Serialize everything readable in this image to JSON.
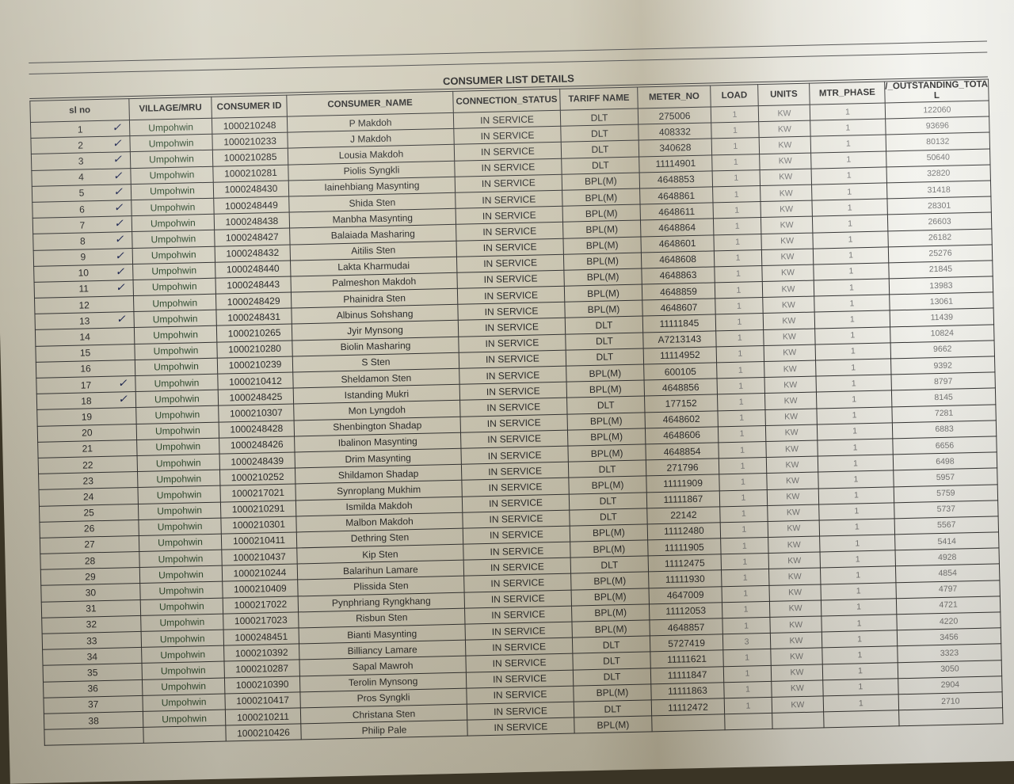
{
  "document": {
    "title": "CONSUMER LIST DETAILS",
    "columns": [
      "sl no",
      "VILLAGE/MRU",
      "CONSUMER ID",
      "CONSUMER_NAME",
      "CONNECTION_STATUS",
      "TARIFF NAME",
      "METER_NO",
      "LOAD",
      "UNITS",
      "MTR_PHASE",
      "/_OUTSTANDING_TOTAL"
    ],
    "rows": [
      [
        "1",
        "Umpohwin",
        "1000210248",
        "P Makdoh",
        "IN SERVICE",
        "DLT",
        "275006",
        "1",
        "KW",
        "1",
        "122060"
      ],
      [
        "2",
        "Umpohwin",
        "1000210233",
        "J Makdoh",
        "IN SERVICE",
        "DLT",
        "408332",
        "1",
        "KW",
        "1",
        "93696"
      ],
      [
        "3",
        "Umpohwin",
        "1000210285",
        "Lousia Makdoh",
        "IN SERVICE",
        "DLT",
        "340628",
        "1",
        "KW",
        "1",
        "80132"
      ],
      [
        "4",
        "Umpohwin",
        "1000210281",
        "Piolis Syngkli",
        "IN SERVICE",
        "DLT",
        "11114901",
        "1",
        "KW",
        "1",
        "50640"
      ],
      [
        "5",
        "Umpohwin",
        "1000248430",
        "Iainehbiang Masynting",
        "IN SERVICE",
        "BPL(M)",
        "4648853",
        "1",
        "KW",
        "1",
        "32820"
      ],
      [
        "6",
        "Umpohwin",
        "1000248449",
        "Shida Sten",
        "IN SERVICE",
        "BPL(M)",
        "4648861",
        "1",
        "KW",
        "1",
        "31418"
      ],
      [
        "7",
        "Umpohwin",
        "1000248438",
        "Manbha Masynting",
        "IN SERVICE",
        "BPL(M)",
        "4648611",
        "1",
        "KW",
        "1",
        "28301"
      ],
      [
        "8",
        "Umpohwin",
        "1000248427",
        "Balaiada Masharing",
        "IN SERVICE",
        "BPL(M)",
        "4648864",
        "1",
        "KW",
        "1",
        "26603"
      ],
      [
        "9",
        "Umpohwin",
        "1000248432",
        "Aitilis Sten",
        "IN SERVICE",
        "BPL(M)",
        "4648601",
        "1",
        "KW",
        "1",
        "26182"
      ],
      [
        "10",
        "Umpohwin",
        "1000248440",
        "Lakta Kharmudai",
        "IN SERVICE",
        "BPL(M)",
        "4648608",
        "1",
        "KW",
        "1",
        "25276"
      ],
      [
        "11",
        "Umpohwin",
        "1000248443",
        "Palmeshon Makdoh",
        "IN SERVICE",
        "BPL(M)",
        "4648863",
        "1",
        "KW",
        "1",
        "21845"
      ],
      [
        "12",
        "Umpohwin",
        "1000248429",
        "Phainidra Sten",
        "IN SERVICE",
        "BPL(M)",
        "4648859",
        "1",
        "KW",
        "1",
        "13983"
      ],
      [
        "13",
        "Umpohwin",
        "1000248431",
        "Albinus Sohshang",
        "IN SERVICE",
        "BPL(M)",
        "4648607",
        "1",
        "KW",
        "1",
        "13061"
      ],
      [
        "14",
        "Umpohwin",
        "1000210265",
        "Jyir Mynsong",
        "IN SERVICE",
        "DLT",
        "11111845",
        "1",
        "KW",
        "1",
        "11439"
      ],
      [
        "15",
        "Umpohwin",
        "1000210280",
        "Biolin Masharing",
        "IN SERVICE",
        "DLT",
        "A7213143",
        "1",
        "KW",
        "1",
        "10824"
      ],
      [
        "16",
        "Umpohwin",
        "1000210239",
        "S Sten",
        "IN SERVICE",
        "DLT",
        "11114952",
        "1",
        "KW",
        "1",
        "9662"
      ],
      [
        "17",
        "Umpohwin",
        "1000210412",
        "Sheldamon Sten",
        "IN SERVICE",
        "BPL(M)",
        "600105",
        "1",
        "KW",
        "1",
        "9392"
      ],
      [
        "18",
        "Umpohwin",
        "1000248425",
        "Istanding Mukri",
        "IN SERVICE",
        "BPL(M)",
        "4648856",
        "1",
        "KW",
        "1",
        "8797"
      ],
      [
        "19",
        "Umpohwin",
        "1000210307",
        "Mon Lyngdoh",
        "IN SERVICE",
        "DLT",
        "177152",
        "1",
        "KW",
        "1",
        "8145"
      ],
      [
        "20",
        "Umpohwin",
        "1000248428",
        "Shenbington Shadap",
        "IN SERVICE",
        "BPL(M)",
        "4648602",
        "1",
        "KW",
        "1",
        "7281"
      ],
      [
        "21",
        "Umpohwin",
        "1000248426",
        "Ibalinon Masynting",
        "IN SERVICE",
        "BPL(M)",
        "4648606",
        "1",
        "KW",
        "1",
        "6883"
      ],
      [
        "22",
        "Umpohwin",
        "1000248439",
        "Drim Masynting",
        "IN SERVICE",
        "BPL(M)",
        "4648854",
        "1",
        "KW",
        "1",
        "6656"
      ],
      [
        "23",
        "Umpohwin",
        "1000210252",
        "Shildamon Shadap",
        "IN SERVICE",
        "DLT",
        "271796",
        "1",
        "KW",
        "1",
        "6498"
      ],
      [
        "24",
        "Umpohwin",
        "1000217021",
        "Synroplang Mukhim",
        "IN SERVICE",
        "BPL(M)",
        "11111909",
        "1",
        "KW",
        "1",
        "5957"
      ],
      [
        "25",
        "Umpohwin",
        "1000210291",
        "Ismilda Makdoh",
        "IN SERVICE",
        "DLT",
        "11111867",
        "1",
        "KW",
        "1",
        "5759"
      ],
      [
        "26",
        "Umpohwin",
        "1000210301",
        "Malbon Makdoh",
        "IN SERVICE",
        "DLT",
        "22142",
        "1",
        "KW",
        "1",
        "5737"
      ],
      [
        "27",
        "Umpohwin",
        "1000210411",
        "Dethring Sten",
        "IN SERVICE",
        "BPL(M)",
        "11112480",
        "1",
        "KW",
        "1",
        "5567"
      ],
      [
        "28",
        "Umpohwin",
        "1000210437",
        "Kip Sten",
        "IN SERVICE",
        "BPL(M)",
        "11111905",
        "1",
        "KW",
        "1",
        "5414"
      ],
      [
        "29",
        "Umpohwin",
        "1000210244",
        "Balarihun Lamare",
        "IN SERVICE",
        "DLT",
        "11112475",
        "1",
        "KW",
        "1",
        "4928"
      ],
      [
        "30",
        "Umpohwin",
        "1000210409",
        "Plissida Sten",
        "IN SERVICE",
        "BPL(M)",
        "11111930",
        "1",
        "KW",
        "1",
        "4854"
      ],
      [
        "31",
        "Umpohwin",
        "1000217022",
        "Pynphriang Ryngkhang",
        "IN SERVICE",
        "BPL(M)",
        "4647009",
        "1",
        "KW",
        "1",
        "4797"
      ],
      [
        "32",
        "Umpohwin",
        "1000217023",
        "Risbun Sten",
        "IN SERVICE",
        "BPL(M)",
        "11112053",
        "1",
        "KW",
        "1",
        "4721"
      ],
      [
        "33",
        "Umpohwin",
        "1000248451",
        "Bianti Masynting",
        "IN SERVICE",
        "BPL(M)",
        "4648857",
        "1",
        "KW",
        "1",
        "4220"
      ],
      [
        "34",
        "Umpohwin",
        "1000210392",
        "Billiancy Lamare",
        "IN SERVICE",
        "DLT",
        "5727419",
        "3",
        "KW",
        "1",
        "3456"
      ],
      [
        "35",
        "Umpohwin",
        "1000210287",
        "Sapal Mawroh",
        "IN SERVICE",
        "DLT",
        "11111621",
        "1",
        "KW",
        "1",
        "3323"
      ],
      [
        "36",
        "Umpohwin",
        "1000210390",
        "Terolin Mynsong",
        "IN SERVICE",
        "DLT",
        "11111847",
        "1",
        "KW",
        "1",
        "3050"
      ],
      [
        "37",
        "Umpohwin",
        "1000210417",
        "Pros Syngkli",
        "IN SERVICE",
        "BPL(M)",
        "11111863",
        "1",
        "KW",
        "1",
        "2904"
      ],
      [
        "38",
        "Umpohwin",
        "1000210211",
        "Christana Sten",
        "IN SERVICE",
        "DLT",
        "11112472",
        "1",
        "KW",
        "1",
        "2710"
      ],
      [
        "",
        "",
        "1000210426",
        "Philip Pale",
        "IN SERVICE",
        "BPL(M)",
        "",
        "",
        "",
        "",
        ""
      ]
    ]
  }
}
